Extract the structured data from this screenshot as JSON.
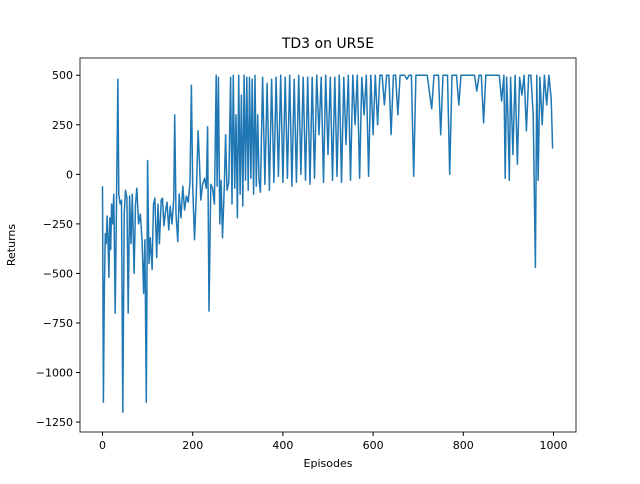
{
  "chart_data": {
    "type": "line",
    "title": "TD3 on UR5E",
    "x_label": "Episodes",
    "y_label": "Returns",
    "xlim": [
      -50,
      1050
    ],
    "ylim": [
      -1300,
      587
    ],
    "xticks": [
      0,
      200,
      400,
      600,
      800,
      1000
    ],
    "yticks": [
      {
        "value": -1250,
        "label": "−1250"
      },
      {
        "value": -1000,
        "label": "−1000"
      },
      {
        "value": -750,
        "label": "−750"
      },
      {
        "value": -500,
        "label": "−500"
      },
      {
        "value": -250,
        "label": "−250"
      },
      0,
      250,
      500
    ],
    "x": [
      0,
      2,
      4,
      6,
      8,
      10,
      12,
      14,
      16,
      18,
      20,
      22,
      25,
      28,
      31,
      34,
      36,
      39,
      42,
      45,
      48,
      51,
      54,
      57,
      60,
      63,
      66,
      70,
      73,
      76,
      80,
      84,
      88,
      91,
      94,
      97,
      100,
      103,
      106,
      110,
      113,
      116,
      120,
      123,
      126,
      130,
      133,
      136,
      140,
      143,
      147,
      150,
      154,
      158,
      160,
      163,
      167,
      170,
      174,
      178,
      182,
      186,
      190,
      194,
      197,
      200,
      204,
      208,
      212,
      215,
      218,
      222,
      226,
      230,
      233,
      236,
      240,
      244,
      248,
      252,
      254,
      257,
      260,
      263,
      266,
      270,
      273,
      276,
      280,
      284,
      287,
      290,
      293,
      296,
      299,
      302,
      305,
      308,
      311,
      314,
      317,
      320,
      323,
      326,
      329,
      332,
      335,
      338,
      341,
      344,
      347,
      350,
      355,
      360,
      365,
      370,
      375,
      380,
      385,
      390,
      395,
      400,
      405,
      410,
      415,
      420,
      425,
      430,
      435,
      440,
      445,
      450,
      455,
      460,
      465,
      470,
      475,
      480,
      485,
      490,
      495,
      500,
      505,
      510,
      515,
      520,
      525,
      530,
      535,
      540,
      545,
      550,
      555,
      560,
      565,
      570,
      575,
      580,
      585,
      590,
      595,
      600,
      605,
      610,
      615,
      620,
      625,
      630,
      635,
      640,
      645,
      650,
      655,
      660,
      665,
      670,
      675,
      680,
      685,
      690,
      695,
      700,
      710,
      720,
      730,
      735,
      745,
      750,
      755,
      765,
      770,
      775,
      785,
      790,
      795,
      805,
      815,
      825,
      830,
      835,
      840,
      845,
      850,
      860,
      870,
      880,
      885,
      890,
      893,
      896,
      899,
      902,
      905,
      910,
      915,
      920,
      925,
      930,
      935,
      940,
      945,
      950,
      955,
      960,
      963,
      966,
      970,
      975,
      980,
      985,
      990,
      995,
      998
    ],
    "series": [
      {
        "name": "Returns",
        "color": "#1f77b4",
        "values": [
          -60,
          -1150,
          -600,
          -300,
          -350,
          -210,
          -330,
          -520,
          -220,
          -380,
          -150,
          -250,
          -100,
          -700,
          -150,
          480,
          -100,
          -150,
          -130,
          -1200,
          -200,
          -80,
          -120,
          -700,
          -110,
          -350,
          -100,
          -500,
          -150,
          -70,
          -250,
          -200,
          -350,
          -600,
          -330,
          -1150,
          70,
          -450,
          -320,
          -480,
          -150,
          -120,
          -420,
          -150,
          -350,
          -130,
          -120,
          -260,
          -180,
          -140,
          -280,
          -160,
          -250,
          -120,
          300,
          -200,
          -340,
          -100,
          -220,
          -60,
          -180,
          -110,
          -140,
          -40,
          450,
          -60,
          -330,
          -100,
          220,
          60,
          -130,
          -50,
          -20,
          -70,
          240,
          -690,
          -50,
          -70,
          -150,
          500,
          -60,
          490,
          -250,
          -30,
          -320,
          -60,
          200,
          -80,
          -40,
          490,
          -150,
          500,
          -70,
          300,
          -220,
          500,
          -100,
          400,
          -160,
          500,
          -30,
          490,
          -80,
          490,
          -20,
          480,
          -100,
          500,
          -60,
          300,
          -30,
          -90,
          490,
          -50,
          460,
          -80,
          480,
          -40,
          490,
          -10,
          500,
          -40,
          490,
          -20,
          500,
          -60,
          480,
          -40,
          500,
          0,
          490,
          -30,
          490,
          -50,
          490,
          -20,
          500,
          200,
          490,
          -40,
          500,
          100,
          490,
          -30,
          490,
          -10,
          500,
          -40,
          490,
          150,
          500,
          -30,
          500,
          250,
          500,
          -20,
          490,
          300,
          500,
          -10,
          500,
          200,
          500,
          250,
          500,
          500,
          350,
          500,
          500,
          200,
          500,
          500,
          300,
          500,
          500,
          500,
          480,
          500,
          500,
          -10,
          500,
          500,
          500,
          500,
          330,
          500,
          500,
          200,
          500,
          500,
          0,
          500,
          500,
          350,
          500,
          500,
          500,
          500,
          420,
          500,
          500,
          260,
          500,
          500,
          500,
          500,
          370,
          500,
          -20,
          490,
          300,
          -30,
          490,
          100,
          500,
          50,
          490,
          400,
          500,
          220,
          500,
          500,
          300,
          -470,
          500,
          -30,
          490,
          250,
          500,
          350,
          500,
          380,
          130
        ]
      }
    ]
  }
}
